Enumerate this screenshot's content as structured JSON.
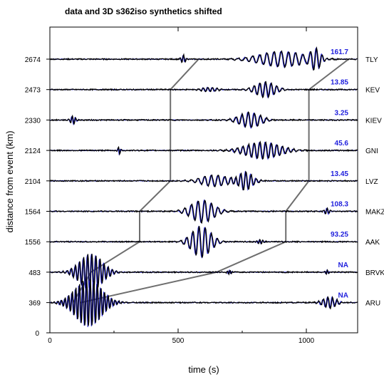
{
  "chart_data": {
    "type": "line",
    "title": "data and 3D s362iso synthetics shifted",
    "xlabel": "time (s)",
    "ylabel": "distance from event (km)",
    "xlim": [
      0,
      1200
    ],
    "x_ticks": [
      "0",
      "500",
      "1000"
    ],
    "y_zero_label": "0",
    "series": [
      {
        "name": "data",
        "color": "#000000"
      },
      {
        "name": "3D s362iso synthetics",
        "color": "#1f1fdd"
      }
    ],
    "traces": [
      {
        "distance_label": "2674",
        "station": "TLY",
        "shift_value": "161.7"
      },
      {
        "distance_label": "2473",
        "station": "KEV",
        "shift_value": "13.85"
      },
      {
        "distance_label": "2330",
        "station": "KIEV",
        "shift_value": "3.25"
      },
      {
        "distance_label": "2124",
        "station": "GNI",
        "shift_value": "45.6"
      },
      {
        "distance_label": "2104",
        "station": "LVZ",
        "shift_value": "13.45"
      },
      {
        "distance_label": "1564",
        "station": "MAKZ",
        "shift_value": "108.3"
      },
      {
        "distance_label": "1556",
        "station": "AAK",
        "shift_value": "93.25"
      },
      {
        "distance_label": "483",
        "station": "BRVK",
        "shift_value": "NA"
      },
      {
        "distance_label": "369",
        "station": "ARU",
        "shift_value": "NA"
      }
    ],
    "window_start_times": [
      580,
      470,
      350,
      160,
      90
    ],
    "window_end_times": [
      1165,
      1010,
      920,
      650,
      120
    ],
    "grid": false,
    "legend": "none"
  }
}
